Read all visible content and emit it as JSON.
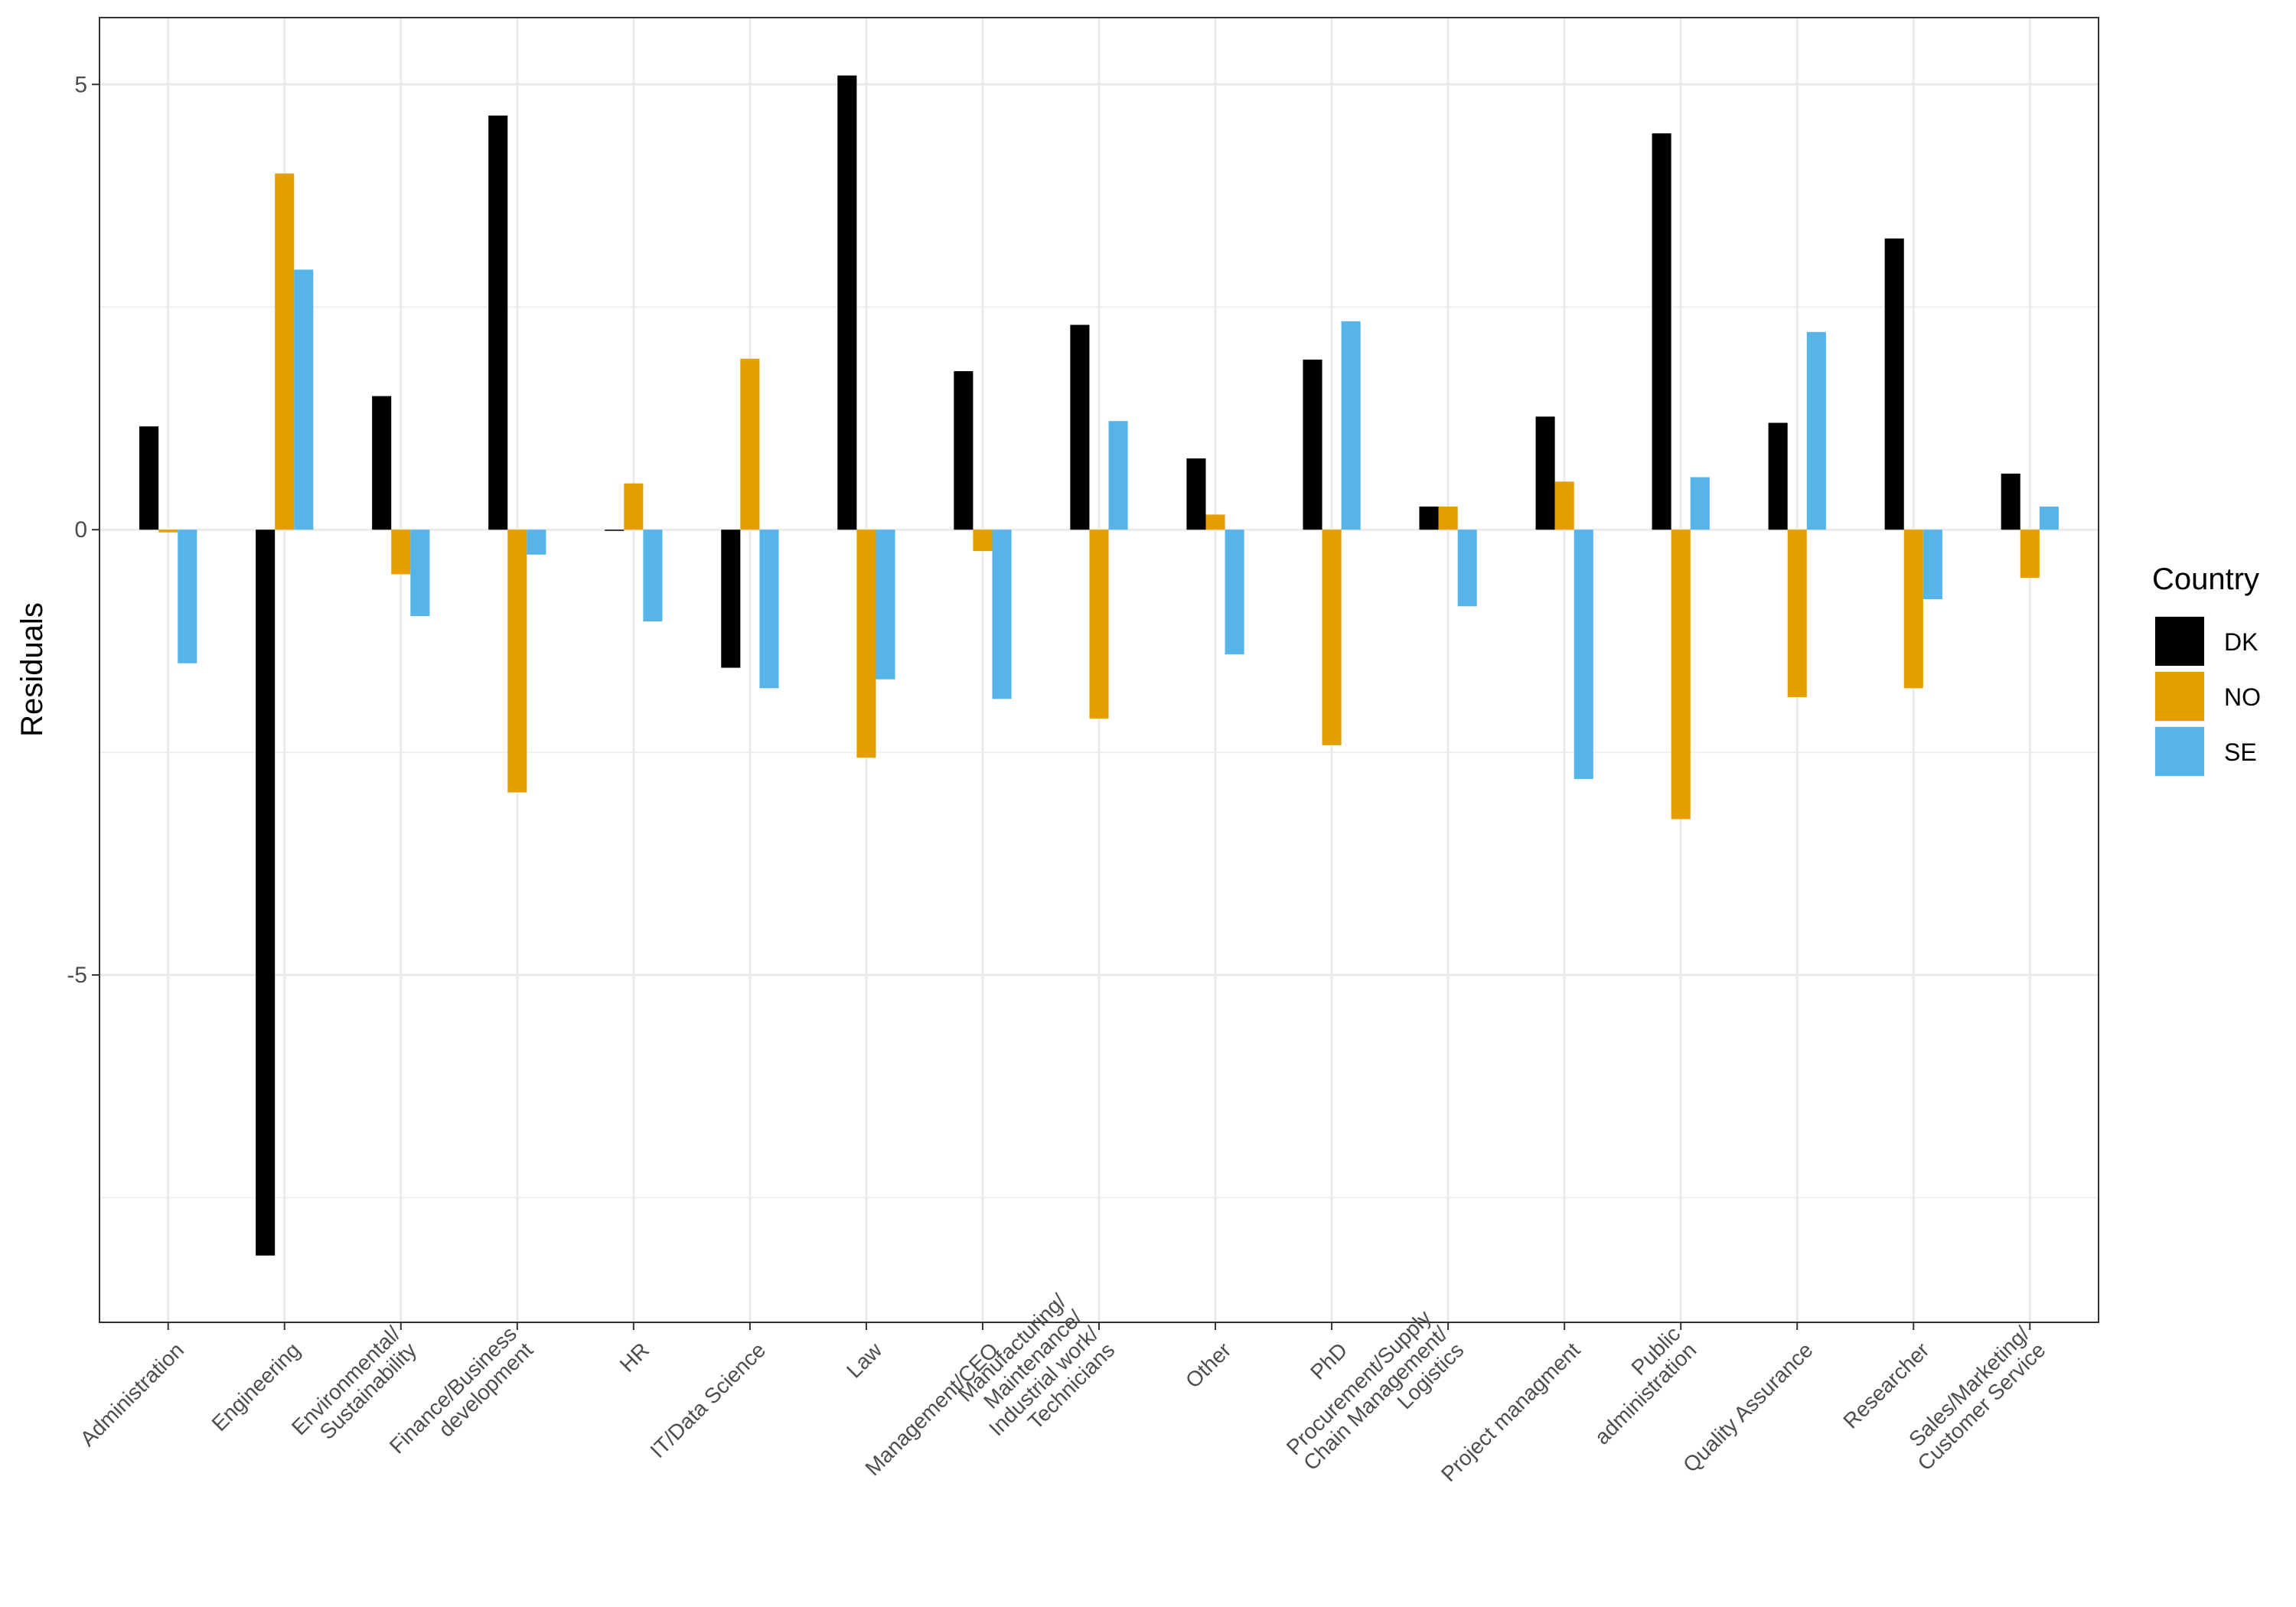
{
  "chart_data": {
    "type": "bar",
    "title": "",
    "xlabel": "",
    "ylabel": "Residuals",
    "ylim": [
      -8.9,
      5.75
    ],
    "yticks": [
      5,
      0,
      -5
    ],
    "ytick_labels": [
      "5",
      "0",
      "-5"
    ],
    "grid": true,
    "legend": {
      "title": "Country",
      "position": "right"
    },
    "categories": [
      [
        "Administration"
      ],
      [
        "Engineering"
      ],
      [
        "Environmental/",
        "Sustainability"
      ],
      [
        "Finance/Business",
        "development"
      ],
      [
        "HR"
      ],
      [
        "IT/Data Science"
      ],
      [
        "Law"
      ],
      [
        "Management/CEO"
      ],
      [
        "Manufacturing/",
        "Maintenance/",
        "Industrial work/",
        "Technicians"
      ],
      [
        "Other"
      ],
      [
        "PhD"
      ],
      [
        "Procurement/Supply",
        "Chain Management/",
        "Logistics"
      ],
      [
        "Project managment"
      ],
      [
        "Public",
        "administration"
      ],
      [
        "Quality Assurance"
      ],
      [
        "Researcher"
      ],
      [
        "Sales/Marketing/",
        "Customer Service"
      ]
    ],
    "series": [
      {
        "name": "DK",
        "color": "#000000",
        "values": [
          1.16,
          -8.15,
          1.5,
          4.65,
          0.0,
          -1.55,
          5.1,
          1.78,
          2.3,
          0.8,
          1.91,
          0.26,
          1.27,
          4.45,
          1.2,
          3.27,
          0.63
        ]
      },
      {
        "name": "NO",
        "color": "#E69F00",
        "values": [
          -0.03,
          4.0,
          -0.5,
          -2.95,
          0.52,
          1.92,
          -2.56,
          -0.24,
          -2.12,
          0.17,
          -2.42,
          0.26,
          0.54,
          -3.25,
          -1.88,
          -1.78,
          -0.54
        ]
      },
      {
        "name": "SE",
        "color": "#56B4E9",
        "values": [
          -1.5,
          2.92,
          -0.97,
          -0.28,
          -1.03,
          -1.78,
          -1.68,
          -1.9,
          1.22,
          -1.4,
          2.34,
          -0.86,
          -2.8,
          0.59,
          2.22,
          -0.78,
          0.26
        ]
      }
    ]
  }
}
